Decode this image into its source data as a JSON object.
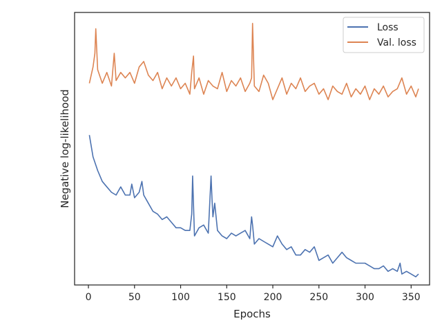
{
  "chart_data": {
    "type": "line",
    "xlabel": "Epochs",
    "ylabel": "Negative log-likelihood",
    "xlim": [
      -15,
      370
    ],
    "ylim": [
      0,
      100
    ],
    "x_ticks": [
      0,
      50,
      100,
      150,
      200,
      250,
      300,
      350
    ],
    "y_ticks_visible": false,
    "grid": false,
    "legend": {
      "position": "top-right"
    },
    "series": [
      {
        "name": "Loss",
        "color": "#4c72b0",
        "x": [
          1,
          5,
          10,
          15,
          20,
          25,
          30,
          35,
          40,
          45,
          47,
          50,
          55,
          58,
          60,
          65,
          70,
          75,
          80,
          85,
          90,
          95,
          100,
          105,
          110,
          112,
          113,
          115,
          120,
          125,
          130,
          133,
          134,
          135,
          137,
          140,
          145,
          150,
          155,
          160,
          165,
          170,
          175,
          177,
          178,
          180,
          185,
          190,
          195,
          200,
          205,
          210,
          215,
          220,
          225,
          230,
          235,
          240,
          245,
          250,
          255,
          260,
          265,
          270,
          275,
          280,
          285,
          290,
          295,
          300,
          305,
          310,
          315,
          320,
          325,
          330,
          335,
          338,
          340,
          345,
          350,
          355,
          358
        ],
        "y": [
          55,
          47,
          42,
          38,
          36,
          34,
          33,
          36,
          33,
          33,
          37,
          32,
          34,
          38,
          33,
          30,
          27,
          26,
          24,
          25,
          23,
          21,
          21,
          20,
          20,
          26,
          40,
          18,
          21,
          22,
          19,
          40,
          32,
          25,
          30,
          20,
          18,
          17,
          19,
          18,
          19,
          20,
          17,
          25,
          22,
          15,
          17,
          16,
          15,
          14,
          18,
          15,
          13,
          14,
          11,
          11,
          13,
          12,
          14,
          9,
          10,
          11,
          8,
          10,
          12,
          10,
          9,
          8,
          8,
          8,
          7,
          6,
          6,
          7,
          5,
          6,
          5,
          8,
          4,
          5,
          4,
          3,
          4
        ]
      },
      {
        "name": "Val. loss",
        "color": "#dd8452",
        "x": [
          1,
          5,
          7,
          8,
          10,
          15,
          20,
          25,
          28,
          30,
          35,
          40,
          45,
          50,
          55,
          60,
          65,
          70,
          75,
          80,
          85,
          90,
          95,
          100,
          105,
          110,
          112,
          114,
          115,
          120,
          125,
          130,
          135,
          140,
          145,
          150,
          155,
          160,
          165,
          170,
          175,
          177,
          178,
          180,
          185,
          190,
          195,
          200,
          205,
          210,
          215,
          220,
          225,
          230,
          235,
          240,
          245,
          250,
          255,
          260,
          265,
          270,
          275,
          280,
          285,
          290,
          295,
          300,
          305,
          310,
          315,
          320,
          325,
          330,
          335,
          340,
          345,
          350,
          355,
          358
        ],
        "y": [
          74,
          80,
          85,
          94,
          79,
          74,
          78,
          73,
          85,
          75,
          78,
          76,
          78,
          74,
          80,
          82,
          77,
          75,
          78,
          72,
          76,
          73,
          76,
          72,
          74,
          70,
          78,
          84,
          72,
          76,
          70,
          75,
          73,
          72,
          78,
          71,
          75,
          73,
          76,
          71,
          74,
          76,
          96,
          73,
          71,
          77,
          74,
          68,
          72,
          76,
          70,
          74,
          72,
          76,
          71,
          73,
          74,
          70,
          72,
          68,
          73,
          71,
          70,
          74,
          69,
          72,
          70,
          73,
          68,
          72,
          70,
          73,
          69,
          71,
          72,
          76,
          70,
          73,
          69,
          72
        ]
      }
    ]
  }
}
